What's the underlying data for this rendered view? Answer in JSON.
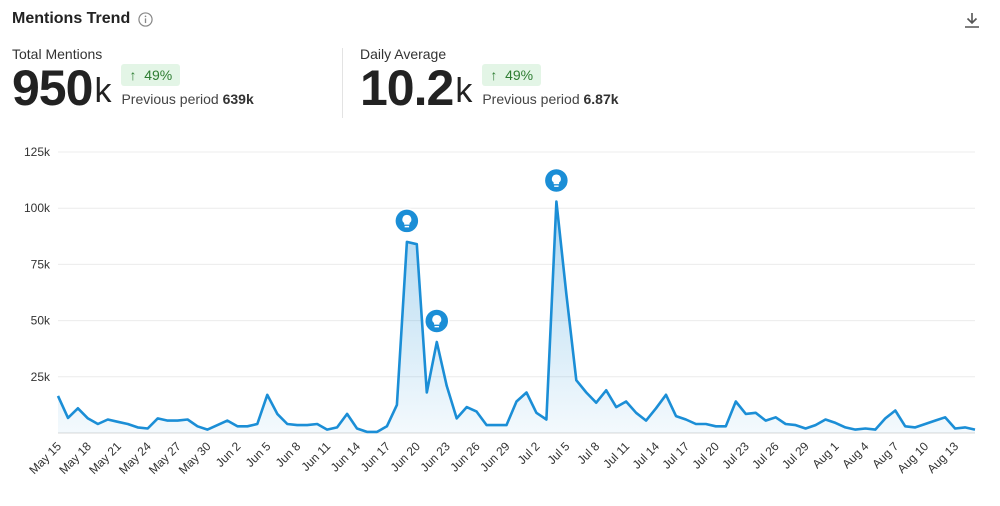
{
  "header": {
    "title": "Mentions Trend"
  },
  "kpis": [
    {
      "label": "Total Mentions",
      "value": "950",
      "unit": "k",
      "change": "49%",
      "previous_label": "Previous period",
      "previous": "639k"
    },
    {
      "label": "Daily Average",
      "value": "10.2",
      "unit": "k",
      "change": "49%",
      "previous_label": "Previous period",
      "previous": "6.87k"
    }
  ],
  "chart_data": {
    "type": "line",
    "color": "#1b8ed6",
    "grid": true,
    "ylim": [
      0,
      125000
    ],
    "yticks": [
      {
        "value": 25000,
        "label": "25k"
      },
      {
        "value": 50000,
        "label": "50k"
      },
      {
        "value": 75000,
        "label": "75k"
      },
      {
        "value": 100000,
        "label": "100k"
      },
      {
        "value": 125000,
        "label": "125k"
      }
    ],
    "insights": [
      35,
      38,
      50
    ],
    "categories": [
      "May 15",
      null,
      null,
      "May 18",
      null,
      null,
      "May 21",
      null,
      null,
      "May 24",
      null,
      null,
      "May 27",
      null,
      null,
      "May 30",
      null,
      null,
      "Jun 2",
      null,
      null,
      "Jun 5",
      null,
      null,
      "Jun 8",
      null,
      null,
      "Jun 11",
      null,
      null,
      "Jun 14",
      null,
      null,
      "Jun 17",
      null,
      null,
      "Jun 20",
      null,
      null,
      "Jun 23",
      null,
      null,
      "Jun 26",
      null,
      null,
      "Jun 29",
      null,
      null,
      "Jul 2",
      null,
      null,
      "Jul 5",
      null,
      null,
      "Jul 8",
      null,
      null,
      "Jul 11",
      null,
      null,
      "Jul 14",
      null,
      null,
      "Jul 17",
      null,
      null,
      "Jul 20",
      null,
      null,
      "Jul 23",
      null,
      null,
      "Jul 26",
      null,
      null,
      "Jul 29",
      null,
      null,
      "Aug 1",
      null,
      null,
      "Aug 4",
      null,
      null,
      "Aug 7",
      null,
      null,
      "Aug 10",
      null,
      null,
      "Aug 13",
      null,
      null
    ],
    "values": [
      16500,
      6700,
      11000,
      6500,
      4000,
      6000,
      5000,
      4000,
      2500,
      2000,
      6500,
      5500,
      5500,
      6000,
      3000,
      1500,
      3500,
      5500,
      3000,
      3000,
      4000,
      17000,
      8500,
      4000,
      3500,
      3500,
      4000,
      1500,
      2500,
      8500,
      2000,
      500,
      500,
      3000,
      12500,
      85000,
      84000,
      18000,
      40500,
      21000,
      6500,
      11500,
      9500,
      3500,
      3500,
      3500,
      14000,
      18000,
      9000,
      6000,
      103000,
      62000,
      23500,
      18000,
      13500,
      19000,
      11500,
      14000,
      9000,
      5500,
      11000,
      17000,
      7500,
      6000,
      4000,
      4000,
      3000,
      3000,
      14000,
      8500,
      9000,
      5500,
      7000,
      4000,
      3500,
      2000,
      3500,
      6000,
      4500,
      2500,
      1500,
      2000,
      1500,
      6500,
      10000,
      3000,
      2500,
      4000,
      5500,
      7000,
      2000,
      2500,
      1500
    ]
  }
}
